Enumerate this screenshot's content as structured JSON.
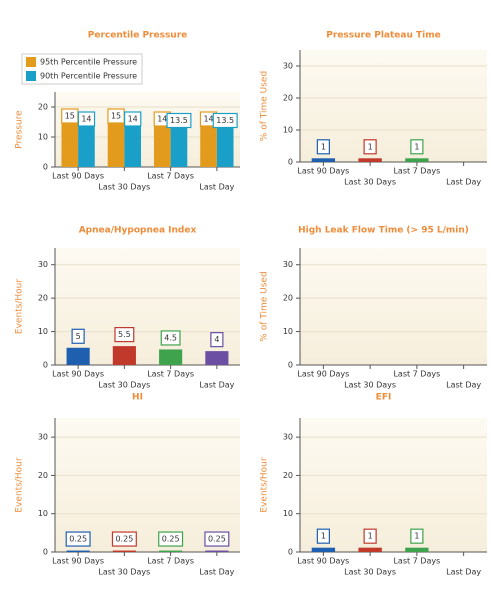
{
  "chart_data": [
    {
      "type": "bar",
      "title": "Percentile Pressure",
      "y_label": "Pressure",
      "categories": [
        "Last 90 Days",
        "Last 30 Days",
        "Last 7 Days",
        "Last Day"
      ],
      "series": [
        {
          "name": "95th Percentile Pressure",
          "color": "#e39b1e",
          "values": [
            15,
            15,
            14,
            14
          ]
        },
        {
          "name": "90th Percentile Pressure",
          "color": "#1aa0c8",
          "values": [
            14,
            14,
            13.5,
            13.5
          ]
        }
      ],
      "ylim": [
        0,
        25
      ],
      "yticks": [
        0,
        10,
        20
      ],
      "grid": true,
      "legend": "top-left"
    },
    {
      "type": "bar",
      "title": "Pressure Plateau Time",
      "y_label": "% of Time Used",
      "categories": [
        "Last 90 Days",
        "Last 30 Days",
        "Last 7 Days",
        "Last Day"
      ],
      "values": [
        1,
        1,
        1,
        null
      ],
      "colors": [
        "#1f5fb0",
        "#c0392b",
        "#3fa34d",
        "#6a4fa3"
      ],
      "ylim": [
        0,
        35
      ],
      "yticks": [
        0,
        10,
        20,
        30
      ],
      "grid": true
    },
    {
      "type": "bar",
      "title": "Apnea/Hypopnea Index",
      "y_label": "Events/Hour",
      "categories": [
        "Last 90 Days",
        "Last 30 Days",
        "Last 7 Days",
        "Last Day"
      ],
      "values": [
        5,
        5.5,
        4.5,
        4
      ],
      "colors": [
        "#1f5fb0",
        "#c0392b",
        "#3fa34d",
        "#6a4fa3"
      ],
      "ylim": [
        0,
        35
      ],
      "yticks": [
        0,
        10,
        20,
        30
      ],
      "grid": true
    },
    {
      "type": "bar",
      "title": "High Leak Flow Time (> 95 L/min)",
      "y_label": "% of Time Used",
      "categories": [
        "Last 90 Days",
        "Last 30 Days",
        "Last 7 Days",
        "Last Day"
      ],
      "ylim": [
        0,
        35
      ],
      "yticks": [
        0,
        10,
        20,
        30
      ],
      "grid": true
    },
    {
      "type": "bar",
      "title": "HI",
      "y_label": "Events/Hour",
      "categories": [
        "Last 90 Days",
        "Last 30 Days",
        "Last 7 Days",
        "Last Day"
      ],
      "values": [
        0.25,
        0.25,
        0.25,
        0.25
      ],
      "colors": [
        "#1f5fb0",
        "#c0392b",
        "#3fa34d",
        "#6a4fa3"
      ],
      "ylim": [
        0,
        35
      ],
      "yticks": [
        0,
        10,
        20,
        30
      ],
      "grid": true
    },
    {
      "type": "bar",
      "title": "EFI",
      "y_label": "Events/Hour",
      "categories": [
        "Last 90 Days",
        "Last 30 Days",
        "Last 7 Days",
        "Last Day"
      ],
      "values": [
        1,
        1,
        1,
        null
      ],
      "colors": [
        "#1f5fb0",
        "#c0392b",
        "#3fa34d",
        "#6a4fa3"
      ],
      "ylim": [
        0,
        35
      ],
      "yticks": [
        0,
        10,
        20,
        30
      ],
      "grid": true
    }
  ]
}
